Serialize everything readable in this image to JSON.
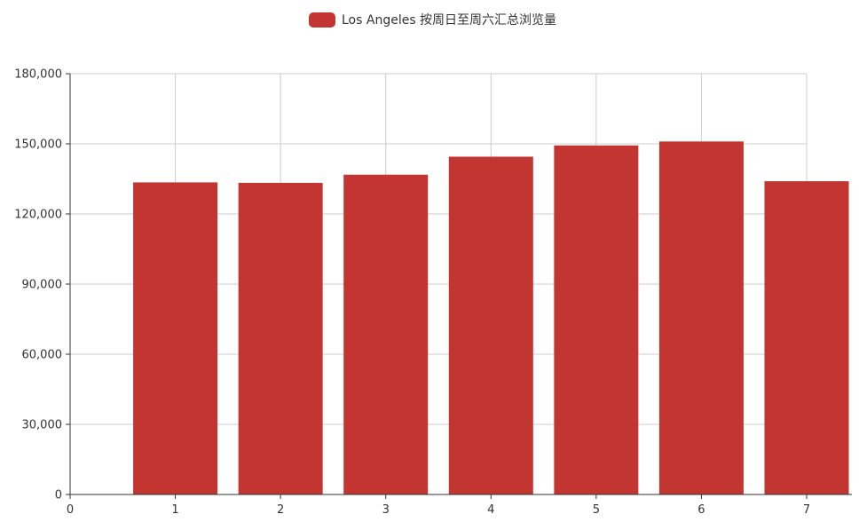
{
  "chart_data": {
    "type": "bar",
    "title": "",
    "xlabel": "",
    "ylabel": "",
    "x": [
      1,
      2,
      3,
      4,
      5,
      6,
      7
    ],
    "x_ticks": [
      "0",
      "1",
      "2",
      "3",
      "4",
      "5",
      "6",
      "7"
    ],
    "xlim": [
      0,
      7
    ],
    "ylim": [
      0,
      180000
    ],
    "y_ticks": [
      0,
      30000,
      60000,
      90000,
      120000,
      150000,
      180000
    ],
    "y_tick_labels": [
      "0",
      "30,000",
      "60,000",
      "90,000",
      "120,000",
      "150,000",
      "180,000"
    ],
    "grid": true,
    "legend_position": "top-center",
    "series": [
      {
        "name": "Los Angeles 按周日至周六汇总浏览量",
        "color": "#c23531",
        "values": [
          133500,
          133300,
          136800,
          144500,
          149300,
          151000,
          134000
        ]
      }
    ]
  }
}
